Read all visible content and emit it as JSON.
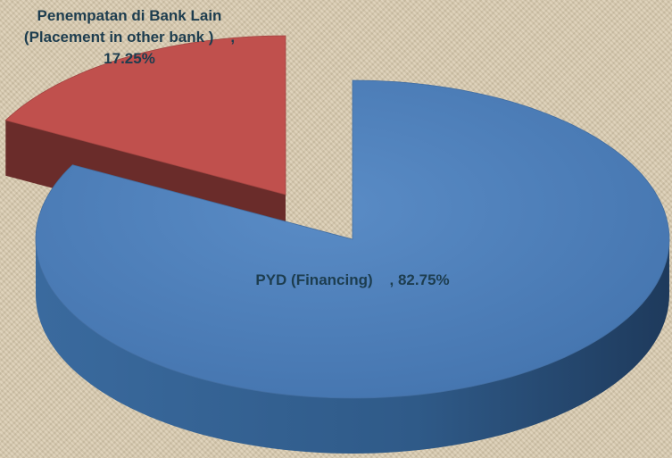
{
  "chart_data": {
    "type": "pie3d",
    "categories": [
      "Penempatan di Bank Lain (Placement in other bank )",
      "PYD (Financing)"
    ],
    "values": [
      17.25,
      82.75
    ],
    "value_labels": [
      "    , 17.25%",
      "    , 82.75%"
    ],
    "colors": [
      "#c0504d",
      "#4f81bd"
    ]
  }
}
